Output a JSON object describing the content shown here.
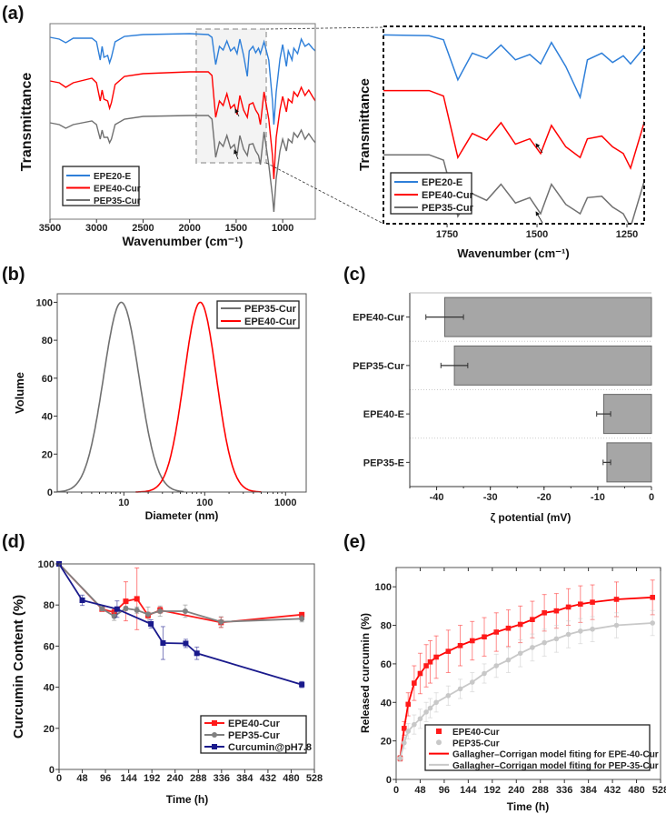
{
  "panel_labels": {
    "a": "(a)",
    "b": "(b)",
    "c": "(c)",
    "d": "(d)",
    "e": "(e)"
  },
  "chart_data": [
    {
      "panel": "a",
      "type": "line",
      "xlabel": "Wavenumber (cm⁻¹)",
      "ylabel": "Transmittance",
      "xlim": [
        3500,
        650
      ],
      "ylim_au": [
        0,
        215
      ],
      "xticks": [
        3500,
        3000,
        2500,
        2000,
        1500,
        1000
      ],
      "inset": {
        "xlabel": "Wavenumber (cm⁻¹)",
        "ylabel": "Transmittance",
        "xlim": [
          1927,
          1202
        ],
        "ylim_au": [
          62.5,
          210
        ],
        "xticks": [
          1750,
          1500,
          1250
        ]
      },
      "series": [
        {
          "name": "EPE20-E",
          "color": "#2e7fd9",
          "points": [
            [
              3500,
              200
            ],
            [
              3400,
              198
            ],
            [
              3330,
              194
            ],
            [
              3250,
              199
            ],
            [
              3050,
              199
            ],
            [
              3000,
              195
            ],
            [
              2960,
              175
            ],
            [
              2940,
              190
            ],
            [
              2920,
              178
            ],
            [
              2880,
              180
            ],
            [
              2860,
              172
            ],
            [
              2840,
              178
            ],
            [
              2800,
              195
            ],
            [
              2700,
              201
            ],
            [
              2500,
              203
            ],
            [
              2000,
              204
            ],
            [
              1800,
              203
            ],
            [
              1760,
              200
            ],
            [
              1740,
              185
            ],
            [
              1720,
              170
            ],
            [
              1680,
              190
            ],
            [
              1640,
              186
            ],
            [
              1600,
              196
            ],
            [
              1560,
              185
            ],
            [
              1520,
              189
            ],
            [
              1490,
              182
            ],
            [
              1460,
              198
            ],
            [
              1420,
              180
            ],
            [
              1380,
              157
            ],
            [
              1360,
              185
            ],
            [
              1320,
              190
            ],
            [
              1290,
              183
            ],
            [
              1260,
              188
            ],
            [
              1240,
              182
            ],
            [
              1200,
              195
            ],
            [
              1150,
              175
            ],
            [
              1110,
              130
            ],
            [
              1095,
              104
            ],
            [
              1070,
              140
            ],
            [
              1030,
              176
            ],
            [
              1000,
              192
            ],
            [
              960,
              168
            ],
            [
              940,
              185
            ],
            [
              900,
              175
            ],
            [
              880,
              188
            ],
            [
              840,
              182
            ],
            [
              800,
              198
            ],
            [
              760,
              190
            ],
            [
              720,
              193
            ],
            [
              680,
              188
            ],
            [
              650,
              185
            ]
          ]
        },
        {
          "name": "EPE40-Cur",
          "color": "#ff0000",
          "points": [
            [
              3500,
              152
            ],
            [
              3400,
              150
            ],
            [
              3330,
              145
            ],
            [
              3250,
              150
            ],
            [
              3050,
              155
            ],
            [
              3000,
              150
            ],
            [
              2960,
              130
            ],
            [
              2940,
              142
            ],
            [
              2920,
              132
            ],
            [
              2880,
              130
            ],
            [
              2860,
              122
            ],
            [
              2840,
              128
            ],
            [
              2800,
              148
            ],
            [
              2700,
              157
            ],
            [
              2500,
              160
            ],
            [
              2000,
              162
            ],
            [
              1800,
              162
            ],
            [
              1760,
              158
            ],
            [
              1740,
              135
            ],
            [
              1720,
              112
            ],
            [
              1680,
              130
            ],
            [
              1640,
              125
            ],
            [
              1600,
              138
            ],
            [
              1560,
              122
            ],
            [
              1520,
              126
            ],
            [
              1490,
              115
            ],
            [
              1460,
              136
            ],
            [
              1420,
              120
            ],
            [
              1380,
              112
            ],
            [
              1360,
              126
            ],
            [
              1320,
              128
            ],
            [
              1290,
              120
            ],
            [
              1260,
              115
            ],
            [
              1240,
              104
            ],
            [
              1200,
              140
            ],
            [
              1150,
              110
            ],
            [
              1110,
              70
            ],
            [
              1095,
              44
            ],
            [
              1070,
              90
            ],
            [
              1030,
              120
            ],
            [
              1000,
              135
            ],
            [
              960,
              118
            ],
            [
              940,
              132
            ],
            [
              900,
              128
            ],
            [
              880,
              140
            ],
            [
              840,
              135
            ],
            [
              800,
              145
            ],
            [
              760,
              136
            ],
            [
              720,
              142
            ],
            [
              680,
              135
            ],
            [
              650,
              130
            ]
          ]
        },
        {
          "name": "PEP35-Cur",
          "color": "#707070",
          "points": [
            [
              3500,
              106
            ],
            [
              3400,
              104
            ],
            [
              3330,
              100
            ],
            [
              3250,
              104
            ],
            [
              3050,
              108
            ],
            [
              3000,
              104
            ],
            [
              2960,
              88
            ],
            [
              2940,
              98
            ],
            [
              2920,
              90
            ],
            [
              2880,
              90
            ],
            [
              2860,
              84
            ],
            [
              2840,
              88
            ],
            [
              2800,
              104
            ],
            [
              2700,
              110
            ],
            [
              2500,
              113
            ],
            [
              2000,
              114
            ],
            [
              1800,
              114
            ],
            [
              1760,
              110
            ],
            [
              1740,
              90
            ],
            [
              1720,
              68
            ],
            [
              1680,
              85
            ],
            [
              1640,
              80
            ],
            [
              1600,
              92
            ],
            [
              1560,
              78
            ],
            [
              1520,
              82
            ],
            [
              1490,
              70
            ],
            [
              1460,
              92
            ],
            [
              1420,
              77
            ],
            [
              1380,
              70
            ],
            [
              1360,
              82
            ],
            [
              1320,
              83
            ],
            [
              1290,
              75
            ],
            [
              1260,
              70
            ],
            [
              1240,
              60
            ],
            [
              1200,
              96
            ],
            [
              1150,
              60
            ],
            [
              1110,
              25
            ],
            [
              1095,
              8
            ],
            [
              1070,
              45
            ],
            [
              1030,
              75
            ],
            [
              1000,
              88
            ],
            [
              960,
              75
            ],
            [
              940,
              88
            ],
            [
              900,
              84
            ],
            [
              880,
              95
            ],
            [
              840,
              90
            ],
            [
              800,
              98
            ],
            [
              760,
              88
            ],
            [
              720,
              94
            ],
            [
              680,
              88
            ],
            [
              650,
              84
            ]
          ]
        }
      ]
    },
    {
      "panel": "b",
      "type": "line",
      "xscale": "log",
      "xlabel": "Diameter (nm)",
      "ylabel": "Volume",
      "xlim": [
        1.5,
        1800
      ],
      "ylim": [
        0,
        104.5
      ],
      "xticks": [
        10,
        100,
        1000
      ],
      "yticks": [
        0,
        20,
        40,
        60,
        80,
        100
      ],
      "legend": "top-right",
      "series": [
        {
          "name": "PEP35-Cur",
          "color": "#707070",
          "peak_nm": 9.3,
          "log10_sigma": 0.22,
          "range_nm": [
            1.5,
            55
          ]
        },
        {
          "name": "EPE40-Cur",
          "color": "#ff0000",
          "peak_nm": 88,
          "log10_sigma": 0.2,
          "range_nm": [
            14,
            500
          ]
        }
      ]
    },
    {
      "panel": "c",
      "type": "bar",
      "orientation": "horizontal",
      "xlabel": "ζ potential (mV)",
      "xlim": [
        -45,
        0
      ],
      "xticks": [
        -40,
        -30,
        -20,
        -10,
        0
      ],
      "categories": [
        "EPE40-Cur",
        "PEP35-Cur",
        "EPE40-E",
        "PEP35-E"
      ],
      "values": [
        -38.5,
        -36.7,
        -8.9,
        -8.3
      ],
      "errors": [
        3.5,
        2.5,
        1.3,
        0.7
      ],
      "color": "#a6a6a6"
    },
    {
      "panel": "d",
      "type": "line",
      "xlabel": "Time (h)",
      "ylabel": "Curcumin Content (%)",
      "xlim": [
        0,
        528
      ],
      "ylim": [
        0,
        100
      ],
      "xticks": [
        0,
        48,
        96,
        144,
        192,
        240,
        288,
        336,
        384,
        432,
        480,
        528
      ],
      "yticks": [
        0,
        20,
        40,
        60,
        80,
        100
      ],
      "legend": "bottom-right",
      "series": [
        {
          "name": "EPE40-Cur",
          "color": "#ff1a1a",
          "marker": "square",
          "x": [
            0,
            89,
            114,
            138,
            161,
            184,
            209,
            335,
            502
          ],
          "y": [
            100,
            78,
            76.4,
            81.8,
            83,
            75,
            77.5,
            71.5,
            75.3
          ],
          "err": [
            0,
            1,
            1.5,
            9.5,
            15,
            1.5,
            1.5,
            2.5,
            1
          ]
        },
        {
          "name": "PEP35-Cur",
          "color": "#808080",
          "marker": "circle",
          "x": [
            0,
            89,
            114,
            138,
            161,
            184,
            209,
            261,
            335,
            502
          ],
          "y": [
            100,
            78.2,
            74.5,
            78.3,
            77.5,
            75.5,
            77,
            77,
            71.8,
            73.3
          ],
          "err": [
            0,
            1,
            2,
            1,
            1.5,
            3.5,
            2.5,
            3,
            2.5,
            1.5
          ]
        },
        {
          "name": "Curcumin@pH7.8",
          "color": "#1a1a8c",
          "marker": "square",
          "x": [
            0,
            48,
            120,
            190,
            215,
            262,
            285,
            502
          ],
          "y": [
            100,
            82.3,
            78,
            70.8,
            61.5,
            61.3,
            56.5,
            41.3
          ],
          "err": [
            0,
            2.5,
            4,
            2,
            8,
            2,
            3,
            1.5
          ]
        }
      ]
    },
    {
      "panel": "e",
      "type": "scatter",
      "xlabel": "Time (h)",
      "ylabel": "Released curcumin (%)",
      "xlim": [
        0,
        528
      ],
      "ylim": [
        0,
        110
      ],
      "xticks": [
        0,
        48,
        96,
        144,
        192,
        240,
        288,
        336,
        384,
        432,
        480,
        528
      ],
      "yticks": [
        0,
        20,
        40,
        60,
        80,
        100
      ],
      "legend": "bottom-right",
      "x": [
        8,
        16,
        24,
        36,
        48,
        60,
        68,
        80,
        104,
        128,
        152,
        176,
        200,
        224,
        248,
        272,
        296,
        320,
        344,
        368,
        392,
        440,
        512
      ],
      "series": [
        {
          "name": "EPE40-Cur",
          "color": "#ff1a1a",
          "marker": "square",
          "y": [
            11,
            26.5,
            39,
            50,
            55,
            59,
            61,
            63.5,
            66.5,
            69.5,
            72,
            74,
            76.5,
            78.5,
            80.5,
            83,
            86.5,
            87.5,
            89.5,
            91,
            92,
            93.5,
            94.5
          ],
          "err": [
            1.5,
            3.5,
            6,
            9,
            10.5,
            11,
            11,
            11,
            11,
            10.5,
            10,
            10,
            10,
            9.5,
            9.5,
            9.5,
            9.5,
            9,
            9.5,
            9.5,
            9,
            9,
            9
          ]
        },
        {
          "name": "PEP35-Cur",
          "color": "#c8c8c8",
          "marker": "circle",
          "y": [
            11,
            19,
            25,
            28.5,
            31.5,
            35,
            37,
            40,
            43.5,
            47,
            50.5,
            55,
            59,
            62,
            65.5,
            68.5,
            71,
            73,
            75.3,
            77,
            78,
            80,
            81.2
          ],
          "err": [
            1.5,
            3,
            4,
            5,
            5,
            5,
            5,
            5,
            5,
            5,
            5,
            5,
            6,
            6.5,
            7,
            7,
            7,
            7,
            7,
            6.5,
            6.5,
            6.5,
            6.5
          ]
        }
      ],
      "fits": [
        {
          "name": "Gallagher–Corrigan model fiting for EPE-40-Cur",
          "color": "#ff0000",
          "of": "EPE40-Cur"
        },
        {
          "name": "Gallagher–Corrigan model fiting for PEP-35-Cur",
          "color": "#c8c8c8",
          "of": "PEP35-Cur"
        }
      ]
    }
  ]
}
